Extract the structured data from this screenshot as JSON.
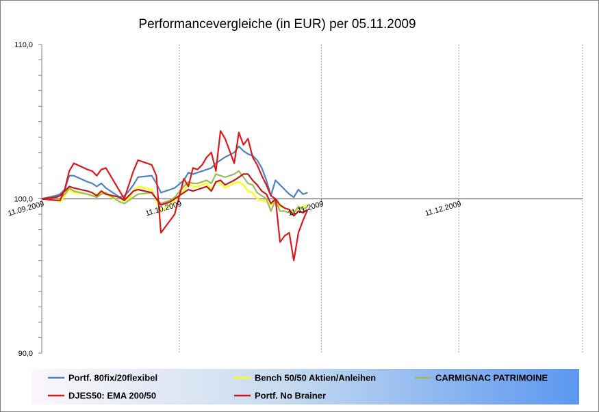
{
  "chart_data": {
    "type": "line",
    "title": "Performancevergleiche (in EUR) per 05.11.2009",
    "xlabel": "",
    "ylabel": "",
    "x_range": [
      "2009-09-11",
      "2010-01-07"
    ],
    "ylim": [
      90,
      110
    ],
    "y_ticks": [
      {
        "value": 90,
        "label": "90,0"
      },
      {
        "value": 100,
        "label": "100,0"
      },
      {
        "value": 110,
        "label": "110,0"
      }
    ],
    "x_ticks": [
      {
        "date": "2009-09-11",
        "label": "11.09.2009"
      },
      {
        "date": "2009-10-11",
        "label": "11.10.2009"
      },
      {
        "date": "2009-11-11",
        "label": "11.11.2009"
      },
      {
        "date": "2009-12-11",
        "label": "11.12.2009"
      }
    ],
    "grid": {
      "vertical": true,
      "horizontal": false
    },
    "legend_position": "bottom",
    "series": [
      {
        "name": "Portf. 80fix/20flexibel",
        "color": "#4f81bd",
        "points": [
          [
            "2009-09-11",
            100.0
          ],
          [
            "2009-09-14",
            100.2
          ],
          [
            "2009-09-15",
            100.3
          ],
          [
            "2009-09-16",
            100.6
          ],
          [
            "2009-09-17",
            101.5
          ],
          [
            "2009-09-18",
            101.5
          ],
          [
            "2009-09-21",
            101.1
          ],
          [
            "2009-09-22",
            101.0
          ],
          [
            "2009-09-23",
            100.8
          ],
          [
            "2009-09-24",
            101.0
          ],
          [
            "2009-09-25",
            100.7
          ],
          [
            "2009-09-28",
            100.1
          ],
          [
            "2009-09-29",
            100.2
          ],
          [
            "2009-09-30",
            100.5
          ],
          [
            "2009-10-01",
            100.9
          ],
          [
            "2009-10-02",
            101.4
          ],
          [
            "2009-10-05",
            101.5
          ],
          [
            "2009-10-06",
            101.0
          ],
          [
            "2009-10-07",
            100.4
          ],
          [
            "2009-10-08",
            100.5
          ],
          [
            "2009-10-09",
            100.6
          ],
          [
            "2009-10-10",
            100.7
          ],
          [
            "2009-10-12",
            101.2
          ],
          [
            "2009-10-13",
            101.7
          ],
          [
            "2009-10-14",
            101.6
          ],
          [
            "2009-10-15",
            101.7
          ],
          [
            "2009-10-16",
            101.8
          ],
          [
            "2009-10-17",
            101.9
          ],
          [
            "2009-10-18",
            102.0
          ],
          [
            "2009-10-19",
            102.3
          ],
          [
            "2009-10-20",
            102.5
          ],
          [
            "2009-10-21",
            102.7
          ],
          [
            "2009-10-23",
            103.0
          ],
          [
            "2009-10-24",
            103.4
          ],
          [
            "2009-10-25",
            103.1
          ],
          [
            "2009-10-26",
            102.9
          ],
          [
            "2009-10-27",
            102.8
          ],
          [
            "2009-10-28",
            102.5
          ],
          [
            "2009-10-29",
            102.0
          ],
          [
            "2009-10-30",
            101.2
          ],
          [
            "2009-10-31",
            100.2
          ],
          [
            "2009-11-01",
            101.2
          ],
          [
            "2009-11-02",
            100.9
          ],
          [
            "2009-11-03",
            100.6
          ],
          [
            "2009-11-04",
            100.3
          ],
          [
            "2009-11-05",
            100.1
          ],
          [
            "2009-11-06",
            100.6
          ],
          [
            "2009-11-07",
            100.3
          ],
          [
            "2009-11-08",
            100.4
          ]
        ]
      },
      {
        "name": "Bench 50/50 Aktien/Anleihen",
        "color": "#ffff00",
        "points": [
          [
            "2009-09-11",
            100.0
          ],
          [
            "2009-09-14",
            99.9
          ],
          [
            "2009-09-15",
            99.8
          ],
          [
            "2009-09-16",
            100.2
          ],
          [
            "2009-09-17",
            100.6
          ],
          [
            "2009-09-18",
            100.4
          ],
          [
            "2009-09-21",
            100.3
          ],
          [
            "2009-09-22",
            100.2
          ],
          [
            "2009-09-23",
            100.3
          ],
          [
            "2009-09-24",
            100.4
          ],
          [
            "2009-09-25",
            100.3
          ],
          [
            "2009-09-28",
            99.8
          ],
          [
            "2009-09-29",
            99.9
          ],
          [
            "2009-09-30",
            100.0
          ],
          [
            "2009-10-01",
            100.5
          ],
          [
            "2009-10-02",
            100.8
          ],
          [
            "2009-10-05",
            100.6
          ],
          [
            "2009-10-06",
            99.9
          ],
          [
            "2009-10-07",
            99.2
          ],
          [
            "2009-10-08",
            99.4
          ],
          [
            "2009-10-09",
            99.6
          ],
          [
            "2009-10-10",
            99.9
          ],
          [
            "2009-10-12",
            100.5
          ],
          [
            "2009-10-13",
            101.0
          ],
          [
            "2009-10-14",
            100.8
          ],
          [
            "2009-10-15",
            100.8
          ],
          [
            "2009-10-16",
            100.9
          ],
          [
            "2009-10-17",
            101.0
          ],
          [
            "2009-10-18",
            100.6
          ],
          [
            "2009-10-19",
            101.1
          ],
          [
            "2009-10-20",
            101.0
          ],
          [
            "2009-10-21",
            100.7
          ],
          [
            "2009-10-23",
            101.0
          ],
          [
            "2009-10-24",
            101.1
          ],
          [
            "2009-10-25",
            100.9
          ],
          [
            "2009-10-26",
            100.5
          ],
          [
            "2009-10-27",
            100.4
          ],
          [
            "2009-10-28",
            100.0
          ],
          [
            "2009-10-29",
            99.9
          ],
          [
            "2009-10-30",
            99.8
          ],
          [
            "2009-10-31",
            99.6
          ],
          [
            "2009-11-01",
            99.9
          ],
          [
            "2009-11-02",
            99.5
          ],
          [
            "2009-11-03",
            99.4
          ],
          [
            "2009-11-04",
            99.3
          ],
          [
            "2009-11-05",
            99.1
          ],
          [
            "2009-11-06",
            99.4
          ],
          [
            "2009-11-07",
            99.5
          ],
          [
            "2009-11-08",
            99.6
          ]
        ]
      },
      {
        "name": "CARMIGNAC PATRIMOINE",
        "color": "#9bbb59",
        "points": [
          [
            "2009-09-11",
            100.0
          ],
          [
            "2009-09-14",
            100.1
          ],
          [
            "2009-09-15",
            100.0
          ],
          [
            "2009-09-16",
            100.3
          ],
          [
            "2009-09-17",
            100.7
          ],
          [
            "2009-09-18",
            100.5
          ],
          [
            "2009-09-21",
            100.3
          ],
          [
            "2009-09-22",
            100.2
          ],
          [
            "2009-09-23",
            100.1
          ],
          [
            "2009-09-24",
            100.3
          ],
          [
            "2009-09-25",
            100.4
          ],
          [
            "2009-09-28",
            99.8
          ],
          [
            "2009-09-29",
            99.7
          ],
          [
            "2009-09-30",
            99.9
          ],
          [
            "2009-10-01",
            100.1
          ],
          [
            "2009-10-02",
            100.3
          ],
          [
            "2009-10-05",
            100.4
          ],
          [
            "2009-10-06",
            100.0
          ],
          [
            "2009-10-07",
            99.7
          ],
          [
            "2009-10-08",
            99.8
          ],
          [
            "2009-10-09",
            99.9
          ],
          [
            "2009-10-10",
            100.1
          ],
          [
            "2009-10-12",
            100.8
          ],
          [
            "2009-10-13",
            101.1
          ],
          [
            "2009-10-14",
            101.0
          ],
          [
            "2009-10-15",
            101.0
          ],
          [
            "2009-10-16",
            101.1
          ],
          [
            "2009-10-17",
            101.2
          ],
          [
            "2009-10-18",
            101.0
          ],
          [
            "2009-10-19",
            101.6
          ],
          [
            "2009-10-20",
            101.5
          ],
          [
            "2009-10-21",
            101.4
          ],
          [
            "2009-10-23",
            101.6
          ],
          [
            "2009-10-24",
            101.8
          ],
          [
            "2009-10-25",
            101.4
          ],
          [
            "2009-10-26",
            101.0
          ],
          [
            "2009-10-27",
            100.9
          ],
          [
            "2009-10-28",
            100.4
          ],
          [
            "2009-10-29",
            100.2
          ],
          [
            "2009-10-30",
            100.0
          ],
          [
            "2009-10-31",
            99.2
          ],
          [
            "2009-11-01",
            99.9
          ],
          [
            "2009-11-02",
            99.2
          ],
          [
            "2009-11-03",
            99.2
          ],
          [
            "2009-11-04",
            99.1
          ],
          [
            "2009-11-05",
            99.1
          ],
          [
            "2009-11-06",
            99.5
          ],
          [
            "2009-11-07",
            99.3
          ],
          [
            "2009-11-08",
            99.5
          ]
        ]
      },
      {
        "name": "DJES50:  EMA 200/50",
        "color": "#e0161c",
        "points": [
          [
            "2009-09-11",
            100.0
          ],
          [
            "2009-09-14",
            99.9
          ],
          [
            "2009-09-15",
            99.9
          ],
          [
            "2009-09-16",
            100.6
          ],
          [
            "2009-09-17",
            101.8
          ],
          [
            "2009-09-18",
            102.3
          ],
          [
            "2009-09-21",
            101.9
          ],
          [
            "2009-09-22",
            101.8
          ],
          [
            "2009-09-23",
            101.5
          ],
          [
            "2009-09-24",
            101.9
          ],
          [
            "2009-09-25",
            102.0
          ],
          [
            "2009-09-28",
            100.5
          ],
          [
            "2009-09-29",
            100.0
          ],
          [
            "2009-09-30",
            100.9
          ],
          [
            "2009-10-01",
            101.8
          ],
          [
            "2009-10-02",
            102.5
          ],
          [
            "2009-10-05",
            102.2
          ],
          [
            "2009-10-06",
            101.5
          ],
          [
            "2009-10-07",
            97.8
          ],
          [
            "2009-10-08",
            98.2
          ],
          [
            "2009-10-09",
            98.6
          ],
          [
            "2009-10-10",
            99.0
          ],
          [
            "2009-10-12",
            101.3
          ],
          [
            "2009-10-13",
            100.8
          ],
          [
            "2009-10-14",
            102.0
          ],
          [
            "2009-10-15",
            101.9
          ],
          [
            "2009-10-16",
            102.2
          ],
          [
            "2009-10-17",
            102.7
          ],
          [
            "2009-10-18",
            103.0
          ],
          [
            "2009-10-19",
            101.8
          ],
          [
            "2009-10-20",
            104.4
          ],
          [
            "2009-10-21",
            103.9
          ],
          [
            "2009-10-23",
            102.3
          ],
          [
            "2009-10-24",
            104.3
          ],
          [
            "2009-10-25",
            103.5
          ],
          [
            "2009-10-26",
            103.9
          ],
          [
            "2009-10-27",
            102.7
          ],
          [
            "2009-10-28",
            102.2
          ],
          [
            "2009-10-29",
            101.5
          ],
          [
            "2009-10-30",
            100.9
          ],
          [
            "2009-10-31",
            100.2
          ],
          [
            "2009-11-01",
            100.0
          ],
          [
            "2009-11-02",
            97.2
          ],
          [
            "2009-11-03",
            97.6
          ],
          [
            "2009-11-04",
            97.8
          ],
          [
            "2009-11-05",
            96.0
          ],
          [
            "2009-11-06",
            97.8
          ],
          [
            "2009-11-07",
            98.6
          ],
          [
            "2009-11-08",
            99.3
          ]
        ]
      },
      {
        "name": "Portf. No Brainer",
        "color": "#c0181c",
        "points": [
          [
            "2009-09-11",
            100.0
          ],
          [
            "2009-09-14",
            100.1
          ],
          [
            "2009-09-15",
            100.2
          ],
          [
            "2009-09-16",
            100.5
          ],
          [
            "2009-09-17",
            100.8
          ],
          [
            "2009-09-18",
            100.7
          ],
          [
            "2009-09-21",
            100.5
          ],
          [
            "2009-09-22",
            100.4
          ],
          [
            "2009-09-23",
            100.2
          ],
          [
            "2009-09-24",
            100.5
          ],
          [
            "2009-09-25",
            100.3
          ],
          [
            "2009-09-28",
            100.1
          ],
          [
            "2009-09-29",
            99.9
          ],
          [
            "2009-09-30",
            100.2
          ],
          [
            "2009-10-01",
            100.5
          ],
          [
            "2009-10-02",
            100.6
          ],
          [
            "2009-10-05",
            100.4
          ],
          [
            "2009-10-06",
            100.0
          ],
          [
            "2009-10-07",
            99.6
          ],
          [
            "2009-10-08",
            99.7
          ],
          [
            "2009-10-09",
            99.8
          ],
          [
            "2009-10-10",
            100.0
          ],
          [
            "2009-10-12",
            100.4
          ],
          [
            "2009-10-13",
            100.6
          ],
          [
            "2009-10-14",
            100.5
          ],
          [
            "2009-10-15",
            100.6
          ],
          [
            "2009-10-16",
            100.7
          ],
          [
            "2009-10-17",
            100.8
          ],
          [
            "2009-10-18",
            100.5
          ],
          [
            "2009-10-19",
            101.1
          ],
          [
            "2009-10-20",
            101.2
          ],
          [
            "2009-10-21",
            100.9
          ],
          [
            "2009-10-23",
            101.2
          ],
          [
            "2009-10-24",
            101.4
          ],
          [
            "2009-10-25",
            101.6
          ],
          [
            "2009-10-26",
            101.6
          ],
          [
            "2009-10-27",
            101.2
          ],
          [
            "2009-10-28",
            100.9
          ],
          [
            "2009-10-29",
            100.5
          ],
          [
            "2009-10-30",
            100.3
          ],
          [
            "2009-10-31",
            99.7
          ],
          [
            "2009-11-01",
            100.0
          ],
          [
            "2009-11-02",
            99.6
          ],
          [
            "2009-11-03",
            99.4
          ],
          [
            "2009-11-04",
            99.3
          ],
          [
            "2009-11-05",
            98.9
          ],
          [
            "2009-11-06",
            99.2
          ],
          [
            "2009-11-07",
            99.1
          ],
          [
            "2009-11-08",
            99.3
          ]
        ]
      }
    ]
  }
}
